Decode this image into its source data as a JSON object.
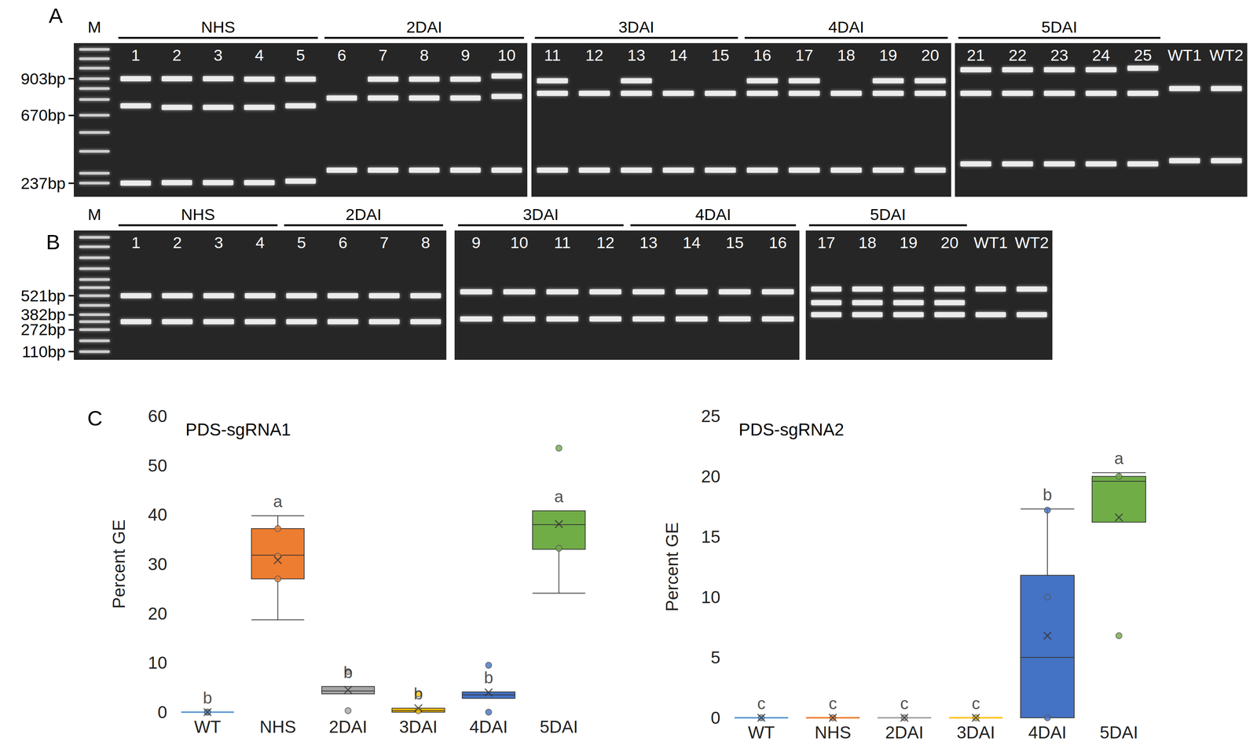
{
  "chart_data": [
    {
      "type": "gel",
      "panel": "A",
      "ylim": [
        150,
        1130
      ],
      "yticks": [
        {
          "value": 903,
          "label": "903bp"
        },
        {
          "value": 670,
          "label": "670bp"
        },
        {
          "value": 237,
          "label": "237bp"
        }
      ],
      "ladder": {
        "label": "M",
        "bands": [
          1090,
          1030,
          970,
          903,
          840,
          770,
          670,
          560,
          440,
          300,
          237
        ]
      },
      "gels": [
        [
          {
            "label": "1",
            "group": "NHS",
            "bands": [
              903,
              730,
              237
            ]
          },
          {
            "label": "2",
            "group": "NHS",
            "bands": [
              903,
              720,
              240
            ]
          },
          {
            "label": "3",
            "group": "NHS",
            "bands": [
              903,
              720,
              240
            ]
          },
          {
            "label": "4",
            "group": "NHS",
            "bands": [
              900,
              720,
              240
            ]
          },
          {
            "label": "5",
            "group": "NHS",
            "bands": [
              900,
              730,
              250
            ]
          },
          {
            "label": "6",
            "group": "2DAI",
            "bands": [
              780,
              320
            ]
          },
          {
            "label": "7",
            "group": "2DAI",
            "bands": [
              900,
              780,
              320
            ]
          },
          {
            "label": "8",
            "group": "2DAI",
            "bands": [
              900,
              780,
              320
            ]
          },
          {
            "label": "9",
            "group": "2DAI",
            "bands": [
              900,
              780,
              320
            ]
          },
          {
            "label": "10",
            "group": "2DAI",
            "bands": [
              920,
              790,
              320
            ]
          }
        ],
        [
          {
            "label": "11",
            "group": "3DAI",
            "bands": [
              890,
              810,
              320
            ]
          },
          {
            "label": "12",
            "group": "3DAI",
            "bands": [
              810,
              320
            ]
          },
          {
            "label": "13",
            "group": "3DAI",
            "bands": [
              890,
              810,
              320
            ]
          },
          {
            "label": "14",
            "group": "3DAI",
            "bands": [
              810,
              320
            ]
          },
          {
            "label": "15",
            "group": "3DAI",
            "bands": [
              810,
              320
            ]
          },
          {
            "label": "16",
            "group": "4DAI",
            "bands": [
              890,
              810,
              320
            ]
          },
          {
            "label": "17",
            "group": "4DAI",
            "bands": [
              890,
              810,
              320
            ]
          },
          {
            "label": "18",
            "group": "4DAI",
            "bands": [
              810,
              320
            ]
          },
          {
            "label": "19",
            "group": "4DAI",
            "bands": [
              890,
              810,
              320
            ]
          },
          {
            "label": "20",
            "group": "4DAI",
            "bands": [
              890,
              810,
              320
            ]
          }
        ],
        [
          {
            "label": "21",
            "group": "5DAI",
            "bands": [
              960,
              810,
              360
            ]
          },
          {
            "label": "22",
            "group": "5DAI",
            "bands": [
              960,
              810,
              360
            ]
          },
          {
            "label": "23",
            "group": "5DAI",
            "bands": [
              960,
              810,
              360
            ]
          },
          {
            "label": "24",
            "group": "5DAI",
            "bands": [
              960,
              810,
              360
            ]
          },
          {
            "label": "25",
            "group": "5DAI",
            "bands": [
              970,
              810,
              360
            ]
          },
          {
            "label": "WT1",
            "bands": [
              840,
              380
            ]
          },
          {
            "label": "WT2",
            "bands": [
              840,
              380
            ]
          }
        ]
      ]
    },
    {
      "type": "gel",
      "panel": "B",
      "ylim": [
        50,
        1000
      ],
      "yticks": [
        {
          "value": 521,
          "label": "521bp"
        },
        {
          "value": 382,
          "label": "382bp"
        },
        {
          "value": 272,
          "label": "272bp"
        },
        {
          "value": 110,
          "label": "110bp"
        }
      ],
      "ladder": {
        "label": "M",
        "bands": [
          950,
          880,
          800,
          720,
          640,
          580,
          521,
          450,
          382,
          330,
          272,
          190,
          110
        ]
      },
      "gels": [
        [
          {
            "label": "1",
            "group": "NHS",
            "bands": [
              521,
              330
            ]
          },
          {
            "label": "2",
            "group": "NHS",
            "bands": [
              521,
              330
            ]
          },
          {
            "label": "3",
            "group": "NHS",
            "bands": [
              521,
              330
            ]
          },
          {
            "label": "4",
            "group": "NHS",
            "bands": [
              521,
              330
            ]
          },
          {
            "label": "5",
            "group": "2DAI",
            "bands": [
              521,
              330
            ]
          },
          {
            "label": "6",
            "group": "2DAI",
            "bands": [
              521,
              330
            ]
          },
          {
            "label": "7",
            "group": "2DAI",
            "bands": [
              521,
              330
            ]
          },
          {
            "label": "8",
            "group": "2DAI",
            "bands": [
              521,
              330
            ]
          }
        ],
        [
          {
            "label": "9",
            "group": "3DAI",
            "bands": [
              550,
              350
            ]
          },
          {
            "label": "10",
            "group": "3DAI",
            "bands": [
              550,
              350
            ]
          },
          {
            "label": "11",
            "group": "3DAI",
            "bands": [
              550,
              350
            ]
          },
          {
            "label": "12",
            "group": "3DAI",
            "bands": [
              550,
              350
            ]
          },
          {
            "label": "13",
            "group": "4DAI",
            "bands": [
              550,
              350
            ]
          },
          {
            "label": "14",
            "group": "4DAI",
            "bands": [
              550,
              350
            ]
          },
          {
            "label": "15",
            "group": "4DAI",
            "bands": [
              550,
              350
            ]
          },
          {
            "label": "16",
            "group": "4DAI",
            "bands": [
              550,
              350
            ]
          }
        ],
        [
          {
            "label": "17",
            "group": "5DAI",
            "bands": [
              570,
              470,
              382
            ]
          },
          {
            "label": "18",
            "group": "5DAI",
            "bands": [
              570,
              470,
              382
            ]
          },
          {
            "label": "19",
            "group": "5DAI",
            "bands": [
              570,
              470,
              382
            ]
          },
          {
            "label": "20",
            "group": "5DAI",
            "bands": [
              570,
              470,
              382
            ]
          },
          {
            "label": "WT1",
            "bands": [
              570,
              382
            ]
          },
          {
            "label": "WT2",
            "bands": [
              570,
              382
            ]
          }
        ]
      ]
    },
    {
      "type": "box",
      "panel": "C",
      "title": "PDS-sgRNA1",
      "y_label": "Percent GE",
      "categories": [
        "WT",
        "NHS",
        "2DAI",
        "3DAI",
        "4DAI",
        "5DAI"
      ],
      "colors": [
        "#5b9bd5",
        "#ed7d31",
        "#a5a5a5",
        "#ffc000",
        "#4472c4",
        "#70ad47"
      ],
      "ylim": [
        0,
        60
      ],
      "yticks": [
        0,
        10,
        20,
        30,
        40,
        50,
        60
      ],
      "grid": false,
      "boxes": [
        [
          0,
          0,
          0,
          0,
          0
        ],
        [
          18.7,
          27,
          31.8,
          37.2,
          39.8
        ],
        [
          3.7,
          3.7,
          4.3,
          5.2,
          5.2
        ],
        [
          0,
          0,
          0.3,
          0.8,
          0.8
        ],
        [
          2.8,
          2.8,
          3.5,
          4.1,
          4.1
        ],
        [
          24.1,
          33,
          38,
          40.8,
          40.8
        ]
      ],
      "means": [
        0,
        30.8,
        4.5,
        0.8,
        4,
        38.1
      ],
      "points": [
        [
          0,
          0,
          0
        ],
        [
          37.2,
          31.6,
          27
        ],
        [
          8.2,
          0.3
        ],
        [
          3.7,
          0.3
        ],
        [
          9.5,
          0
        ],
        [
          53.5,
          33.2
        ]
      ],
      "letters": [
        "b",
        "a",
        "b",
        "b",
        "b",
        "a"
      ]
    },
    {
      "type": "box",
      "title": "PDS-sgRNA2",
      "y_label": "Percent GE",
      "categories": [
        "WT",
        "NHS",
        "2DAI",
        "3DAI",
        "4DAI",
        "5DAI"
      ],
      "colors": [
        "#5b9bd5",
        "#ed7d31",
        "#a5a5a5",
        "#ffc000",
        "#4472c4",
        "#70ad47"
      ],
      "ylim": [
        0,
        25
      ],
      "yticks": [
        0,
        5,
        10,
        15,
        20,
        25
      ],
      "grid": false,
      "boxes": [
        [
          0,
          0,
          0,
          0,
          0
        ],
        [
          0,
          0,
          0,
          0,
          0
        ],
        [
          0,
          0,
          0,
          0,
          0
        ],
        [
          0,
          0,
          0,
          0,
          0
        ],
        [
          0,
          0,
          5,
          11.8,
          17.3
        ],
        [
          16.2,
          16.2,
          19.6,
          20,
          20.3
        ]
      ],
      "means": [
        0,
        0,
        0,
        0,
        6.8,
        16.6
      ],
      "points": [
        [
          0
        ],
        [
          0
        ],
        [
          0
        ],
        [
          0
        ],
        [
          17.2,
          10,
          0
        ],
        [
          20,
          6.8
        ]
      ],
      "letters": [
        "c",
        "c",
        "c",
        "c",
        "b",
        "a"
      ]
    }
  ]
}
